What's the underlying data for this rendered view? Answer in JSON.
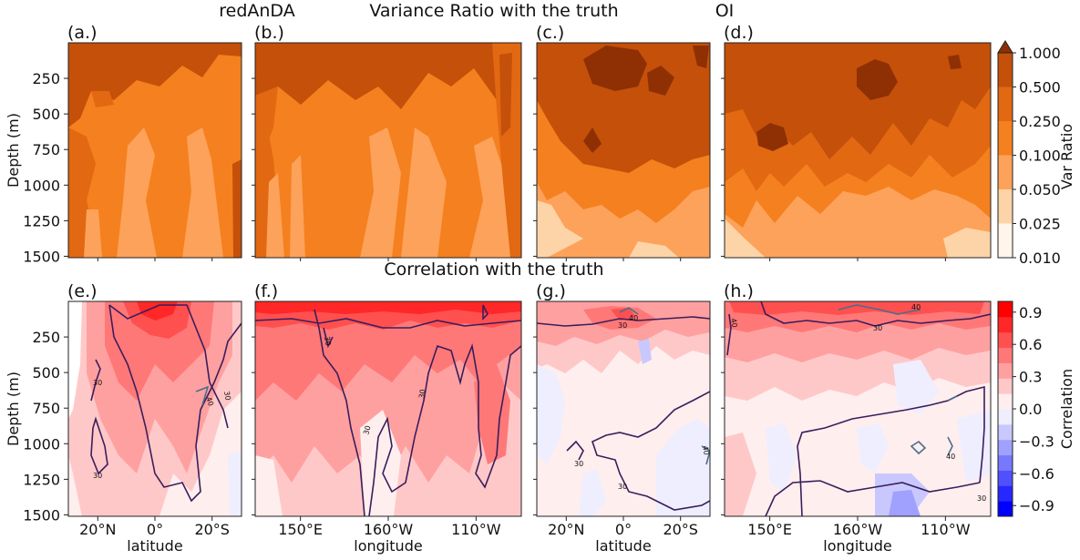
{
  "header": {
    "left_method": "redAnDA",
    "right_method": "OI",
    "top_title": "Variance Ratio with the truth",
    "bottom_title": "Correlation with the truth"
  },
  "colors": {
    "var_scale": [
      "#fff5eb",
      "#fdd4a8",
      "#fda25a",
      "#f5801f",
      "#e26812",
      "#c4500a",
      "#8e3004"
    ],
    "corr_scale": [
      "#0000ff",
      "#2727ff",
      "#5050ff",
      "#7878ff",
      "#a0a0ff",
      "#c8c8ff",
      "#eeeeff",
      "#ffeeee",
      "#ffc8c8",
      "#ffa0a0",
      "#ff7878",
      "#ff5050",
      "#ff2727",
      "#ff0000"
    ],
    "contour_30": "#3a1d5c",
    "contour_40": "#4a6e8c"
  },
  "chart_data": [
    {
      "id": "a",
      "panel_label": "(a.)",
      "type": "heatmap",
      "field": "variance_ratio",
      "xlabel": "",
      "ylabel": "Depth (m)",
      "y_ticks": [
        "250",
        "500",
        "750",
        "1000",
        "1250",
        "1500"
      ],
      "depth_range": [
        0,
        1510
      ],
      "dominant_classes": [
        "0.500",
        "0.250",
        "0.100"
      ]
    },
    {
      "id": "b",
      "panel_label": "(b.)",
      "type": "heatmap",
      "field": "variance_ratio",
      "xlabel": "",
      "ylabel": "",
      "dominant_classes": [
        "0.500",
        "0.250",
        "0.100"
      ]
    },
    {
      "id": "c",
      "panel_label": "(c.)",
      "type": "heatmap",
      "field": "variance_ratio",
      "xlabel": "",
      "ylabel": "",
      "dominant_classes": [
        "1.000",
        "0.500",
        "0.250",
        "0.100",
        "0.050"
      ]
    },
    {
      "id": "d",
      "panel_label": "(d.)",
      "type": "heatmap",
      "field": "variance_ratio",
      "xlabel": "",
      "ylabel": "",
      "dominant_classes": [
        "1.000",
        "0.500",
        "0.250",
        "0.100",
        "0.050"
      ]
    },
    {
      "id": "e",
      "panel_label": "(e.)",
      "type": "heatmap",
      "field": "correlation",
      "xlabel": "latitude",
      "ylabel": "Depth (m)",
      "x_ticks": [
        "20°N",
        "0°",
        "20°S"
      ],
      "y_ticks": [
        "250",
        "500",
        "750",
        "1000",
        "1250",
        "1500"
      ],
      "contour_labels": [
        "30",
        "30",
        "30",
        "40"
      ],
      "dominant_classes": [
        "0.9",
        "0.6",
        "0.3",
        "0.0"
      ]
    },
    {
      "id": "f",
      "panel_label": "(f.)",
      "type": "heatmap",
      "field": "correlation",
      "xlabel": "longitude",
      "ylabel": "",
      "x_ticks": [
        "150°E",
        "160°W",
        "110°W"
      ],
      "contour_labels": [
        "30",
        "30",
        "30"
      ],
      "dominant_classes": [
        "0.9",
        "0.6",
        "0.3",
        "0.0"
      ]
    },
    {
      "id": "g",
      "panel_label": "(g.)",
      "type": "heatmap",
      "field": "correlation",
      "xlabel": "latitude",
      "ylabel": "",
      "x_ticks": [
        "20°N",
        "0°",
        "20°S"
      ],
      "contour_labels": [
        "30",
        "40",
        "30",
        "30",
        "40"
      ],
      "dominant_classes": [
        "0.6",
        "0.3",
        "0.0",
        "−0.3"
      ]
    },
    {
      "id": "h",
      "panel_label": "(h.)",
      "type": "heatmap",
      "field": "correlation",
      "xlabel": "longitude",
      "ylabel": "",
      "x_ticks": [
        "150°E",
        "160°W",
        "110°W"
      ],
      "contour_labels": [
        "40",
        "30",
        "30",
        "40",
        "40"
      ],
      "dominant_classes": [
        "0.6",
        "0.3",
        "0.0",
        "−0.3"
      ]
    },
    {
      "id": "var_colorbar",
      "type": "colorbar",
      "label": "Var Ratio",
      "ticks": [
        "1.000",
        "0.500",
        "0.250",
        "0.100",
        "0.050",
        "0.025",
        "0.010"
      ],
      "extend": "max"
    },
    {
      "id": "corr_colorbar",
      "type": "colorbar",
      "label": "Correlation",
      "ticks": [
        "0.9",
        "0.6",
        "0.3",
        "0.0",
        "−0.3",
        "−0.6",
        "−0.9"
      ],
      "range": [
        -1.0,
        1.0
      ]
    }
  ]
}
